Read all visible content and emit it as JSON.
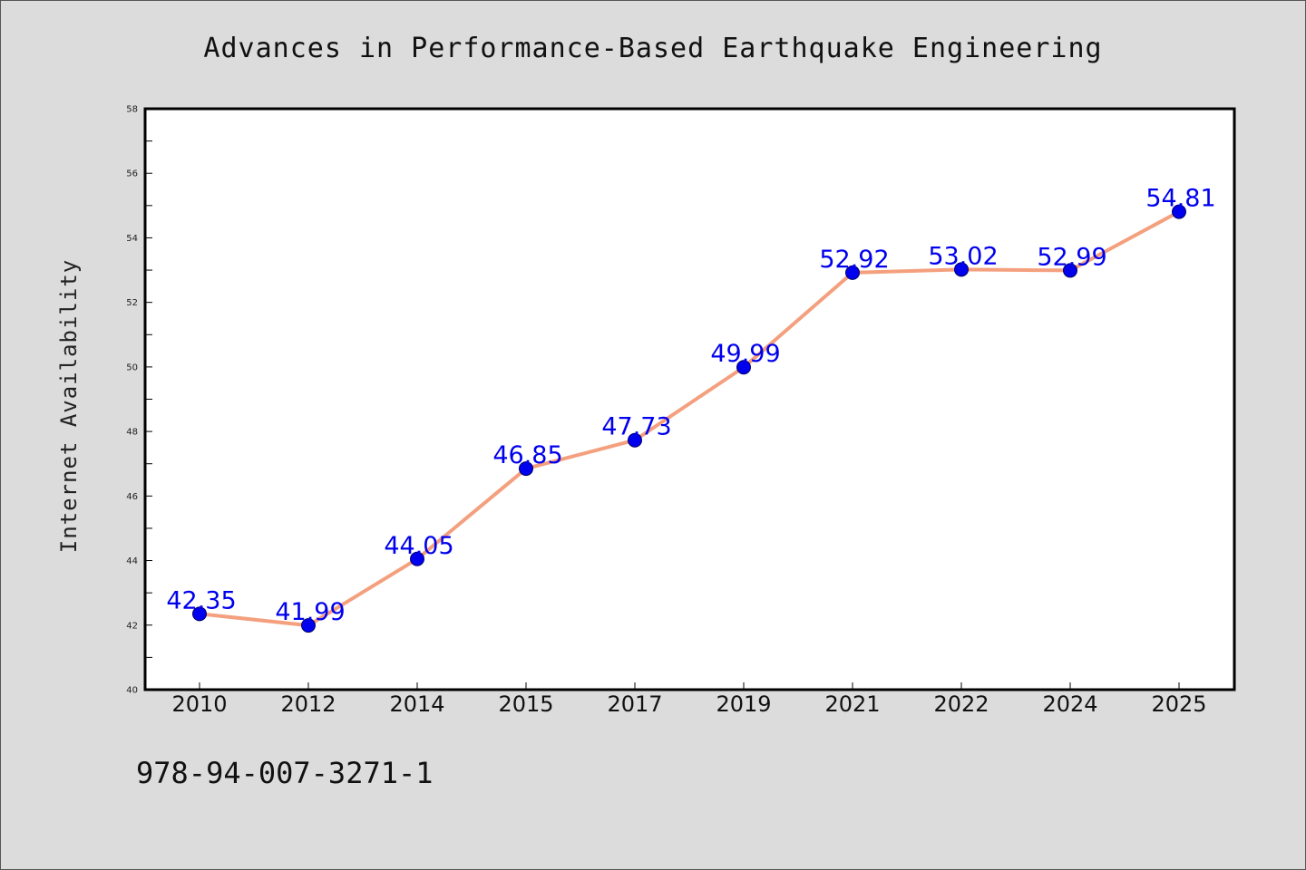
{
  "chart_data": {
    "type": "line",
    "title": "Advances in Performance-Based Earthquake Engineering",
    "xlabel": "",
    "ylabel": "Internet Availability",
    "categories": [
      "2010",
      "2012",
      "2014",
      "2015",
      "2017",
      "2019",
      "2021",
      "2022",
      "2024",
      "2025"
    ],
    "series": [
      {
        "values": [
          42.35,
          41.99,
          44.05,
          46.85,
          47.73,
          49.99,
          52.92,
          53.02,
          52.99,
          54.81
        ],
        "labels": [
          "42.35",
          "41.99",
          "44.05",
          "46.85",
          "47.73",
          "49.99",
          "52.92",
          "53.02",
          "52.99",
          "54.81"
        ]
      }
    ],
    "ylim": [
      40,
      58
    ],
    "yticks": [
      "40",
      "42",
      "44",
      "46",
      "48",
      "50",
      "52",
      "54",
      "56",
      "58"
    ],
    "grid": false,
    "colors": {
      "line": "#f4a07e",
      "marker": "#0000ee",
      "label": "#0000ee"
    }
  },
  "footer": {
    "isbn": "978-94-007-3271-1"
  }
}
